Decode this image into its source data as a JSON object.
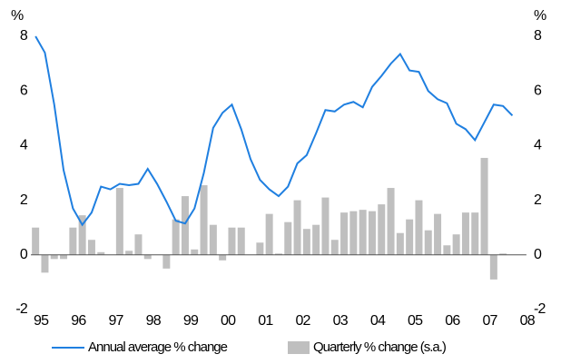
{
  "chart_data": {
    "type": "bar_line",
    "y_label": "%",
    "y2_label": "%",
    "categories": [
      "95",
      null,
      null,
      null,
      "96",
      null,
      null,
      null,
      "97",
      null,
      null,
      null,
      "98",
      null,
      null,
      null,
      "99",
      null,
      null,
      null,
      "00",
      null,
      null,
      null,
      "01",
      null,
      null,
      null,
      "02",
      null,
      null,
      null,
      "03",
      null,
      null,
      null,
      "04",
      null,
      null,
      null,
      "05",
      null,
      null,
      null,
      "06",
      null,
      null,
      null,
      "07",
      null,
      null,
      null,
      "08"
    ],
    "series": [
      {
        "name": "Annual average % change",
        "type": "line",
        "color": "#1f7fe0",
        "values": [
          8.0,
          7.4,
          5.5,
          3.1,
          1.7,
          1.1,
          1.55,
          2.5,
          2.4,
          2.6,
          2.55,
          2.6,
          3.15,
          2.6,
          1.95,
          1.25,
          1.15,
          1.7,
          3.0,
          4.65,
          5.2,
          5.5,
          4.6,
          3.5,
          2.75,
          2.4,
          2.15,
          2.5,
          3.35,
          3.65,
          4.45,
          5.3,
          5.25,
          5.5,
          5.6,
          5.4,
          6.15,
          6.55,
          7.0,
          7.35,
          6.75,
          6.7,
          6.0,
          5.7,
          5.55,
          4.8,
          4.6,
          4.2,
          4.85,
          5.5,
          5.45,
          5.1,
          null
        ]
      },
      {
        "name": "Quarterly % change (s.a.)",
        "type": "bar",
        "color": "#bfbfbf",
        "values": [
          1.0,
          -0.65,
          -0.15,
          -0.15,
          1.0,
          1.45,
          0.55,
          0.1,
          0,
          2.45,
          0.15,
          0.75,
          -0.15,
          0,
          -0.5,
          1.3,
          2.15,
          0.2,
          2.55,
          1.1,
          -0.2,
          1.0,
          1.0,
          0,
          0.45,
          1.5,
          0.05,
          1.2,
          2.0,
          0.95,
          1.1,
          2.1,
          0.55,
          1.55,
          1.6,
          1.65,
          1.6,
          1.85,
          2.45,
          0.8,
          1.3,
          2.0,
          0.9,
          1.5,
          0.35,
          0.75,
          1.55,
          1.55,
          3.55,
          -0.9,
          0.05,
          null,
          null
        ]
      }
    ],
    "ylim": [
      -2,
      8
    ],
    "yticks": [
      -2,
      0,
      2,
      4,
      6,
      8
    ],
    "y2lim": [
      -2,
      8
    ],
    "y2ticks": [
      -2,
      0,
      2,
      4,
      6,
      8
    ],
    "grid": false,
    "legend": "bottom"
  }
}
